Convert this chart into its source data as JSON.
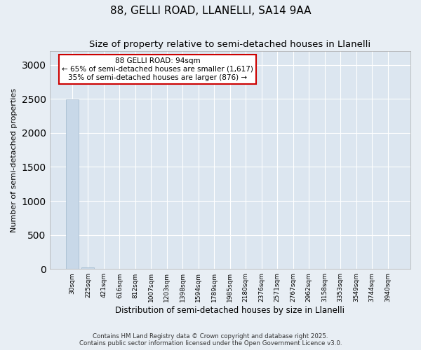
{
  "title_line1": "88, GELLI ROAD, LLANELLI, SA14 9AA",
  "title_line2": "Size of property relative to semi-detached houses in Llanelli",
  "xlabel": "Distribution of semi-detached houses by size in Llanelli",
  "ylabel": "Number of semi-detached properties",
  "annotation_title": "88 GELLI ROAD: 94sqm",
  "annotation_line2": "← 65% of semi-detached houses are smaller (1,617)",
  "annotation_line3": "35% of semi-detached houses are larger (876) →",
  "footnote": "Contains HM Land Registry data © Crown copyright and database right 2025.\nContains public sector information licensed under the Open Government Licence v3.0.",
  "categories": [
    "30sqm",
    "225sqm",
    "421sqm",
    "616sqm",
    "812sqm",
    "1007sqm",
    "1203sqm",
    "1398sqm",
    "1594sqm",
    "1789sqm",
    "1985sqm",
    "2180sqm",
    "2376sqm",
    "2571sqm",
    "2767sqm",
    "2962sqm",
    "3158sqm",
    "3353sqm",
    "3549sqm",
    "3744sqm",
    "3940sqm"
  ],
  "values": [
    2493,
    30,
    0,
    0,
    0,
    0,
    0,
    0,
    0,
    0,
    0,
    0,
    0,
    0,
    0,
    0,
    0,
    0,
    0,
    0,
    0
  ],
  "bar_color": "#c8d8e8",
  "bar_edge_color": "#a0b8cc",
  "annotation_box_color": "#cc0000",
  "annotation_bar_index": 1,
  "ylim": [
    0,
    3200
  ],
  "yticks": [
    0,
    500,
    1000,
    1500,
    2000,
    2500,
    3000
  ],
  "background_color": "#e8eef4",
  "plot_bg_color": "#dce6f0",
  "grid_color": "#ffffff",
  "title_fontsize": 11,
  "subtitle_fontsize": 9.5
}
